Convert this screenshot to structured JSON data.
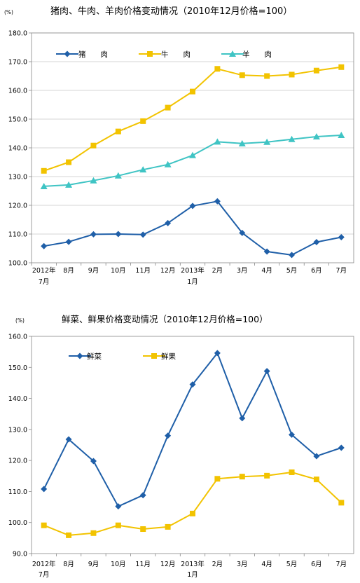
{
  "chart_data": [
    {
      "type": "line",
      "title": "猪肉、牛肉、羊肉价格变动情况（2010年12月价格=100）",
      "unit": "(%)",
      "categories": [
        "2012年\n7月",
        "8月",
        "9月",
        "10月",
        "11月",
        "12月",
        "2013年\n1月",
        "2月",
        "3月",
        "4月",
        "5月",
        "6月",
        "7月"
      ],
      "ylim": [
        100,
        180
      ],
      "yticks": [
        "100.0",
        "110.0",
        "120.0",
        "130.0",
        "140.0",
        "150.0",
        "160.0",
        "170.0",
        "180.0"
      ],
      "grid": true,
      "legend": "top-left",
      "series": [
        {
          "name": "猪　　肉",
          "color": "#1f5fa8",
          "marker": "diamond",
          "values": [
            105.8,
            107.3,
            109.9,
            110.0,
            109.8,
            113.8,
            119.8,
            121.4,
            110.4,
            103.9,
            102.7,
            107.2,
            108.9
          ]
        },
        {
          "name": "牛　　肉",
          "color": "#f2c300",
          "marker": "square",
          "values": [
            132.0,
            135.0,
            140.8,
            145.7,
            149.3,
            154.0,
            159.6,
            167.5,
            165.3,
            165.0,
            165.5,
            166.9,
            168.1
          ]
        },
        {
          "name": "羊　　肉",
          "color": "#3fc4c4",
          "marker": "triangle",
          "values": [
            126.6,
            127.1,
            128.6,
            130.3,
            132.4,
            134.2,
            137.4,
            142.1,
            141.5,
            142.0,
            143.0,
            143.9,
            144.4
          ]
        }
      ]
    },
    {
      "type": "line",
      "title": "鲜菜、鲜果价格变动情况（2010年12月价格=100）",
      "unit": "(%)",
      "categories": [
        "2012年\n7月",
        "8月",
        "9月",
        "10月",
        "11月",
        "12月",
        "2013年\n1月",
        "2月",
        "3月",
        "4月",
        "5月",
        "6月",
        "7月"
      ],
      "ylim": [
        90,
        160
      ],
      "yticks": [
        "90.0",
        "100.0",
        "110.0",
        "120.0",
        "130.0",
        "140.0",
        "150.0",
        "160.0"
      ],
      "grid": false,
      "legend": "top-left",
      "series": [
        {
          "name": "鲜菜",
          "color": "#1f5fa8",
          "marker": "diamond",
          "values": [
            110.8,
            126.8,
            119.8,
            105.2,
            108.8,
            128.0,
            144.5,
            154.6,
            133.6,
            148.8,
            128.3,
            121.4,
            124.1
          ]
        },
        {
          "name": "鲜果",
          "color": "#f2c300",
          "marker": "square",
          "values": [
            99.1,
            95.9,
            96.6,
            99.1,
            97.9,
            98.6,
            102.9,
            114.1,
            114.8,
            115.1,
            116.2,
            113.9,
            106.4
          ]
        }
      ]
    }
  ]
}
